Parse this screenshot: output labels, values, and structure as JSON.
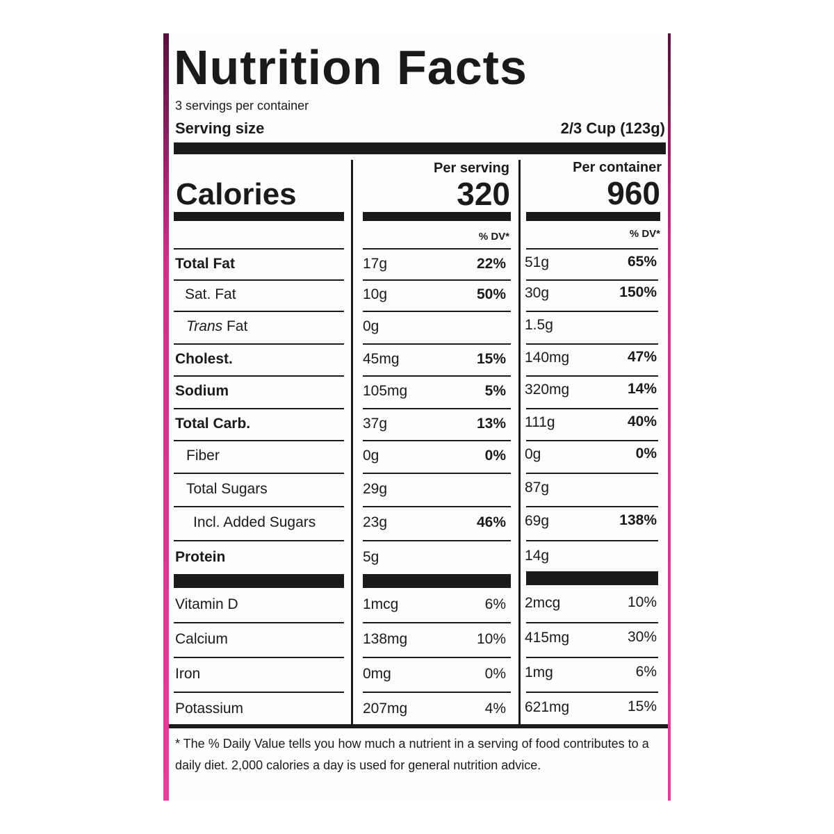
{
  "title": "Nutrition Facts",
  "servings": "3 servings per container",
  "serving_size": {
    "label": "Serving size",
    "value": "2/3 Cup (123g)"
  },
  "columns": {
    "per_serving": "Per serving",
    "per_container": "Per container"
  },
  "calories": {
    "label": "Calories",
    "per_serving": "320",
    "per_container": "960"
  },
  "dv_header": {
    "per_serving": "% DV*",
    "per_container": "% DV*"
  },
  "nutrients": [
    {
      "label": "Total Fat",
      "per_serving": "17g",
      "per_serving_dv": "22%",
      "per_container": "51g",
      "per_container_dv": "65%"
    },
    {
      "label": "Sat. Fat",
      "per_serving": "10g",
      "per_serving_dv": "50%",
      "per_container": "30g",
      "per_container_dv": "150%"
    },
    {
      "label_italic": "Trans",
      "label": "Fat",
      "per_serving": "0g",
      "per_container": "1.5g"
    },
    {
      "label": "Cholest.",
      "per_serving": "45mg",
      "per_serving_dv": "15%",
      "per_container": "140mg",
      "per_container_dv": "47%"
    },
    {
      "label": "Sodium",
      "per_serving": "105mg",
      "per_serving_dv": "5%",
      "per_container": "320mg",
      "per_container_dv": "14%"
    },
    {
      "label": "Total Carb.",
      "per_serving": "37g",
      "per_serving_dv": "13%",
      "per_container": "111g",
      "per_container_dv": "40%"
    },
    {
      "label": "Fiber",
      "per_serving": "0g",
      "per_serving_dv": "0%",
      "per_container": "0g",
      "per_container_dv": "0%"
    },
    {
      "label": "Total Sugars",
      "per_serving": "29g",
      "per_container": "87g"
    },
    {
      "label": "Incl. Added Sugars",
      "per_serving": "23g",
      "per_serving_dv": "46%",
      "per_container": "69g",
      "per_container_dv": "138%"
    },
    {
      "label": "Protein",
      "per_serving": "5g",
      "per_container": "14g"
    }
  ],
  "vitamins": [
    {
      "label": "Vitamin D",
      "per_serving": "1mcg",
      "per_serving_dv": "6%",
      "per_container": "2mcg",
      "per_container_dv": "10%"
    },
    {
      "label": "Calcium",
      "per_serving": "138mg",
      "per_serving_dv": "10%",
      "per_container": "415mg",
      "per_container_dv": "30%"
    },
    {
      "label": "Iron",
      "per_serving": "0mg",
      "per_serving_dv": "0%",
      "per_container": "1mg",
      "per_container_dv": "6%"
    },
    {
      "label": "Potassium",
      "per_serving": "207mg",
      "per_serving_dv": "4%",
      "per_container": "621mg",
      "per_container_dv": "15%"
    }
  ],
  "footnote": "* The % Daily Value tells you how much a nutrient in a serving of food contributes to a daily diet. 2,000 calories a day is used for general nutrition advice."
}
